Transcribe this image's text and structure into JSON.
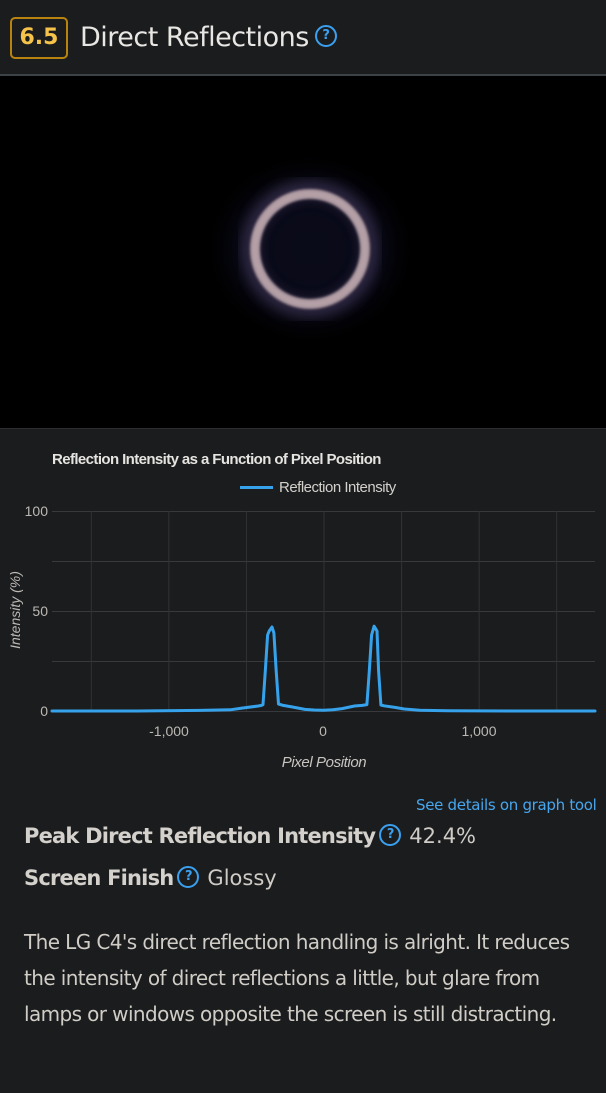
{
  "header": {
    "score": "6.5",
    "title": "Direct Reflections",
    "help_icon": "question-circle-icon",
    "accent_color": "#b9830f",
    "score_color": "#f5c34a"
  },
  "photo": {
    "description": "Reflection test photo: ring light reflection on dark screen"
  },
  "chart_data": {
    "type": "line",
    "title": "Reflection Intensity as a Function of Pixel Position",
    "xlabel": "Pixel Position",
    "ylabel": "Intensity (%)",
    "legend": [
      "Reflection Intensity"
    ],
    "legend_position": "top",
    "grid": true,
    "xlim": [
      -1750,
      1750
    ],
    "ylim": [
      0,
      100
    ],
    "x_ticks": [
      "-1,000",
      "0",
      "1,000"
    ],
    "y_ticks": [
      "0",
      "50",
      "100"
    ],
    "series": [
      {
        "name": "Reflection Intensity",
        "color": "#36a2eb",
        "x": [
          -1750,
          -1200,
          -800,
          -600,
          -520,
          -420,
          -400,
          -390,
          -375,
          -360,
          -350,
          -332,
          -320,
          -305,
          -290,
          -260,
          -200,
          -120,
          -60,
          0,
          60,
          120,
          200,
          250,
          280,
          295,
          310,
          326,
          345,
          355,
          370,
          390,
          460,
          520,
          620,
          800,
          1200,
          1750
        ],
        "values": [
          0,
          0,
          0.3,
          0.6,
          1.5,
          2.5,
          2.8,
          3.2,
          20,
          38,
          40,
          42,
          39,
          20,
          3.5,
          2.8,
          2.0,
          0.8,
          0.5,
          0.4,
          0.6,
          1.2,
          2.5,
          2.8,
          3.2,
          20,
          38,
          42.4,
          40,
          20,
          3.0,
          2.6,
          1.8,
          1.0,
          0.4,
          0.1,
          0,
          0
        ]
      }
    ]
  },
  "link": {
    "label": "See details on graph tool"
  },
  "specs": [
    {
      "label": "Peak Direct Reflection Intensity",
      "value": "42.4%"
    },
    {
      "label": "Screen Finish",
      "value": "Glossy"
    }
  ],
  "description": "The LG C4's direct reflection handling is alright. It reduces the intensity of direct reflections a little, but glare from lamps or windows opposite the screen is still distracting."
}
